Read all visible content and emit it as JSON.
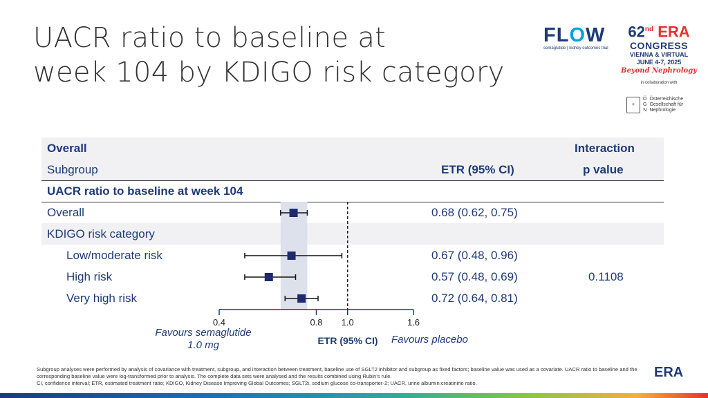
{
  "title_lines": [
    "UACR ratio to baseline at",
    "week 104 by KDIGO risk category"
  ],
  "logos": {
    "flow": {
      "f": "FL",
      "o": "O",
      "w": "W",
      "sub": "semaglutide | kidney outcomes trial"
    },
    "era": {
      "num": "62",
      "sup": "nd",
      "era": "ERA",
      "congress": "CONGRESS",
      "place": "VIENNA & VIRTUAL",
      "dates": "JUNE 4-7, 2025",
      "tagline": "Beyond Nephrology",
      "collab": "in collaboration with"
    },
    "oegn": {
      "letters": [
        "Ö",
        "G",
        "N"
      ],
      "words": [
        "Österreichische",
        "Gesellschaft für",
        "Nephrologie"
      ]
    },
    "bottom": "ERA"
  },
  "table": {
    "header_overall": "Overall",
    "header_subgroup": "Subgroup",
    "header_etr": "ETR (95% CI)",
    "header_interaction": "Interaction",
    "header_pvalue": "p value",
    "section": "UACR ratio to baseline at week 104",
    "rows": [
      {
        "label": "Overall",
        "etr": "0.68 (0.62, 0.75)",
        "p": ""
      },
      {
        "label": "KDIGO risk category",
        "etr": "",
        "p": ""
      },
      {
        "label": "Low/moderate risk",
        "etr": "0.67 (0.48, 0.96)",
        "p": ""
      },
      {
        "label": "High risk",
        "etr": "0.57 (0.48, 0.69)",
        "p": "0.1108"
      },
      {
        "label": "Very high risk",
        "etr": "0.72 (0.64, 0.81)",
        "p": ""
      }
    ]
  },
  "chart_data": {
    "type": "forest",
    "x_scale": "log",
    "xlim": [
      0.4,
      1.6
    ],
    "ticks": [
      "0.4",
      "0.8",
      "1.0",
      "1.6"
    ],
    "reference_line": 1.0,
    "xlabel": "ETR (95%  CI)",
    "favours_left": [
      "Favours semaglutide",
      "1.0 mg"
    ],
    "favours_right": "Favours placebo",
    "points": [
      {
        "label": "Overall",
        "est": 0.68,
        "lo": 0.62,
        "hi": 0.75
      },
      {
        "label": "Low/moderate risk",
        "est": 0.67,
        "lo": 0.48,
        "hi": 0.96
      },
      {
        "label": "High risk",
        "est": 0.57,
        "lo": 0.48,
        "hi": 0.69
      },
      {
        "label": "Very high risk",
        "est": 0.72,
        "lo": 0.64,
        "hi": 0.81
      }
    ],
    "colors": {
      "marker": "#1e2a6e",
      "axis": "#1e3a78",
      "band": "#dde1ec"
    }
  },
  "footnote": [
    "Subgroup analyses were performed by analysis of covariance with treatment, subgroup, and interaction between treatment, baseline use of SGLT2 inhibitor and subgroup as fixed factors; baseline value was used as a covariate. UACR ratio to baseline and the corresponding baseline value were log-transformed prior to analysis. The complete data sets were analysed and the results combined using Rubin’s rule.",
    "CI, confidence interval; ETR, estimated treatment ratio; KDIGO, Kidney Disease Improving Global Outcomes; SGLT2i, sodium glucose co-transporter-2; UACR, urine albumin:creatinine ratio."
  ]
}
